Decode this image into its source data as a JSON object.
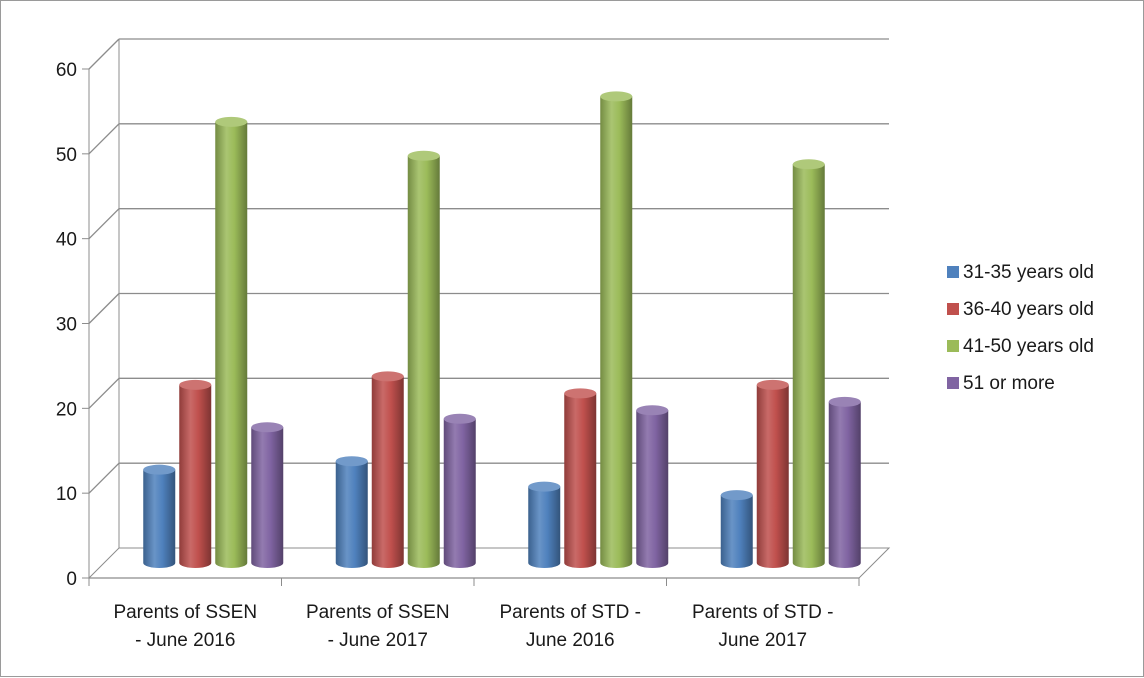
{
  "chart_data": {
    "type": "bar",
    "style": "3d-clustered-cylinder",
    "title": "",
    "xlabel": "",
    "ylabel": "",
    "categories": [
      [
        "Parents of SSEN",
        "- June 2016"
      ],
      [
        "Parents of SSEN",
        "- June 2017"
      ],
      [
        "Parents of STD -",
        "June 2016"
      ],
      [
        "Parents of STD -",
        "June 2017"
      ]
    ],
    "series": [
      {
        "name": "31-35 years old",
        "color": "#4f81bd",
        "values": [
          11,
          12,
          9,
          8
        ]
      },
      {
        "name": "36-40 years old",
        "color": "#c0504d",
        "values": [
          21,
          22,
          20,
          21
        ]
      },
      {
        "name": "41-50 years old",
        "color": "#9bbb59",
        "values": [
          52,
          48,
          55,
          47
        ]
      },
      {
        "name": "51 or more",
        "color": "#8064a2",
        "values": [
          16,
          17,
          18,
          19
        ]
      }
    ],
    "ylim": [
      0,
      60
    ],
    "yticks": [
      0,
      10,
      20,
      30,
      40,
      50,
      60
    ],
    "grid": true,
    "legend_position": "right"
  }
}
